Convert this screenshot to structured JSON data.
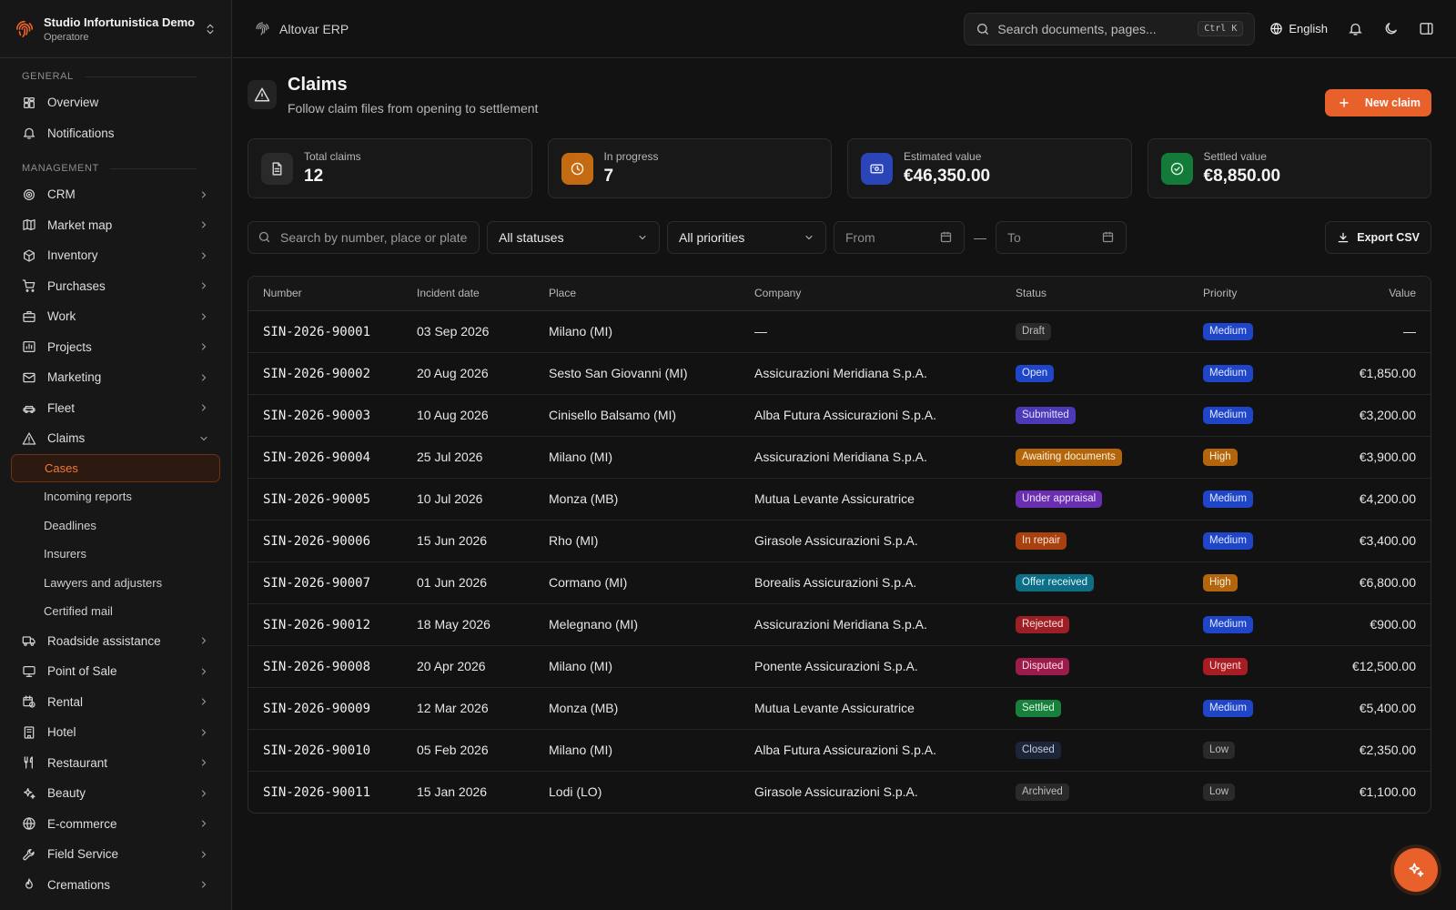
{
  "org": {
    "name": "Studio Infortunistica Demo",
    "role": "Operatore"
  },
  "sidebar": {
    "general_label": "GENERAL",
    "management_label": "MANAGEMENT",
    "general": [
      {
        "label": "Overview",
        "icon": "dashboard-icon"
      },
      {
        "label": "Notifications",
        "icon": "bell-icon"
      }
    ],
    "management_top": [
      {
        "label": "CRM",
        "icon": "target-icon"
      },
      {
        "label": "Market map",
        "icon": "map-icon"
      },
      {
        "label": "Inventory",
        "icon": "package-icon"
      },
      {
        "label": "Purchases",
        "icon": "cart-icon"
      },
      {
        "label": "Work",
        "icon": "briefcase-icon"
      },
      {
        "label": "Projects",
        "icon": "chart-icon"
      },
      {
        "label": "Marketing",
        "icon": "mail-icon"
      },
      {
        "label": "Fleet",
        "icon": "car-icon"
      }
    ],
    "claims": {
      "label": "Claims",
      "icon": "alert-triangle-icon"
    },
    "claims_sub": [
      "Cases",
      "Incoming reports",
      "Deadlines",
      "Insurers",
      "Lawyers and adjusters",
      "Certified mail"
    ],
    "claims_active": "Cases",
    "management_bottom": [
      {
        "label": "Roadside assistance",
        "icon": "truck-icon"
      },
      {
        "label": "Point of Sale",
        "icon": "monitor-icon"
      },
      {
        "label": "Rental",
        "icon": "calendar-clock-icon"
      },
      {
        "label": "Hotel",
        "icon": "building-icon"
      },
      {
        "label": "Restaurant",
        "icon": "utensils-icon"
      },
      {
        "label": "Beauty",
        "icon": "sparkles-icon"
      },
      {
        "label": "E-commerce",
        "icon": "globe-icon"
      },
      {
        "label": "Field Service",
        "icon": "wrench-icon"
      },
      {
        "label": "Cremations",
        "icon": "flame-icon"
      }
    ]
  },
  "topbar": {
    "breadcrumb": "Altovar ERP",
    "search_placeholder": "Search documents, pages...",
    "search_shortcut": "Ctrl K",
    "language": "English"
  },
  "page": {
    "title": "Claims",
    "subtitle": "Follow claim files from opening to settlement",
    "new_button": "New claim"
  },
  "stats": [
    {
      "label": "Total claims",
      "value": "12",
      "icon": "document-icon",
      "bg": "#2a2a2a",
      "fg": "#cfcfcf"
    },
    {
      "label": "In progress",
      "value": "7",
      "icon": "clock-icon",
      "bg": "#c46a12",
      "fg": "#fff1e0"
    },
    {
      "label": "Estimated value",
      "value": "€46,350.00",
      "icon": "banknote-icon",
      "bg": "#2b44b8",
      "fg": "#dbe2ff"
    },
    {
      "label": "Settled value",
      "value": "€8,850.00",
      "icon": "check-circle-icon",
      "bg": "#137a3a",
      "fg": "#d5f5e0"
    }
  ],
  "filters": {
    "search_placeholder": "Search by number, place or plate",
    "status": "All statuses",
    "priority": "All priorities",
    "from": "From",
    "to": "To",
    "export": "Export CSV"
  },
  "table": {
    "columns": [
      "Number",
      "Incident date",
      "Place",
      "Company",
      "Status",
      "Priority",
      "Value"
    ],
    "rows": [
      {
        "number": "SIN-2026-90001",
        "date": "03 Sep 2026",
        "place": "Milano (MI)",
        "company": "—",
        "status": "Draft",
        "status_kind": "draft",
        "priority": "Medium",
        "priority_kind": "medium",
        "value": "—"
      },
      {
        "number": "SIN-2026-90002",
        "date": "20 Aug 2026",
        "place": "Sesto San Giovanni (MI)",
        "company": "Assicurazioni Meridiana S.p.A.",
        "status": "Open",
        "status_kind": "open",
        "priority": "Medium",
        "priority_kind": "medium",
        "value": "€1,850.00"
      },
      {
        "number": "SIN-2026-90003",
        "date": "10 Aug 2026",
        "place": "Cinisello Balsamo (MI)",
        "company": "Alba Futura Assicurazioni S.p.A.",
        "status": "Submitted",
        "status_kind": "submitted",
        "priority": "Medium",
        "priority_kind": "medium",
        "value": "€3,200.00"
      },
      {
        "number": "SIN-2026-90004",
        "date": "25 Jul 2026",
        "place": "Milano (MI)",
        "company": "Assicurazioni Meridiana S.p.A.",
        "status": "Awaiting documents",
        "status_kind": "awaiting",
        "priority": "High",
        "priority_kind": "high",
        "value": "€3,900.00"
      },
      {
        "number": "SIN-2026-90005",
        "date": "10 Jul 2026",
        "place": "Monza (MB)",
        "company": "Mutua Levante Assicuratrice",
        "status": "Under appraisal",
        "status_kind": "appraisal",
        "priority": "Medium",
        "priority_kind": "medium",
        "value": "€4,200.00"
      },
      {
        "number": "SIN-2026-90006",
        "date": "15 Jun 2026",
        "place": "Rho (MI)",
        "company": "Girasole Assicurazioni S.p.A.",
        "status": "In repair",
        "status_kind": "repair",
        "priority": "Medium",
        "priority_kind": "medium",
        "value": "€3,400.00"
      },
      {
        "number": "SIN-2026-90007",
        "date": "01 Jun 2026",
        "place": "Cormano (MI)",
        "company": "Borealis Assicurazioni S.p.A.",
        "status": "Offer received",
        "status_kind": "offer",
        "priority": "High",
        "priority_kind": "high",
        "value": "€6,800.00"
      },
      {
        "number": "SIN-2026-90012",
        "date": "18 May 2026",
        "place": "Melegnano (MI)",
        "company": "Assicurazioni Meridiana S.p.A.",
        "status": "Rejected",
        "status_kind": "rejected",
        "priority": "Medium",
        "priority_kind": "medium",
        "value": "€900.00"
      },
      {
        "number": "SIN-2026-90008",
        "date": "20 Apr 2026",
        "place": "Milano (MI)",
        "company": "Ponente Assicurazioni S.p.A.",
        "status": "Disputed",
        "status_kind": "disputed",
        "priority": "Urgent",
        "priority_kind": "urgent",
        "value": "€12,500.00"
      },
      {
        "number": "SIN-2026-90009",
        "date": "12 Mar 2026",
        "place": "Monza (MB)",
        "company": "Mutua Levante Assicuratrice",
        "status": "Settled",
        "status_kind": "settled",
        "priority": "Medium",
        "priority_kind": "medium",
        "value": "€5,400.00"
      },
      {
        "number": "SIN-2026-90010",
        "date": "05 Feb 2026",
        "place": "Milano (MI)",
        "company": "Alba Futura Assicurazioni S.p.A.",
        "status": "Closed",
        "status_kind": "closed",
        "priority": "Low",
        "priority_kind": "low",
        "value": "€2,350.00"
      },
      {
        "number": "SIN-2026-90011",
        "date": "15 Jan 2026",
        "place": "Lodi (LO)",
        "company": "Girasole Assicurazioni S.p.A.",
        "status": "Archived",
        "status_kind": "archived",
        "priority": "Low",
        "priority_kind": "low",
        "value": "€1,100.00"
      }
    ]
  },
  "badge_colors": {
    "draft": {
      "bg": "#2a2a2a",
      "fg": "#bdbdbd"
    },
    "open": {
      "bg": "#1f45c9",
      "fg": "#e3e9ff"
    },
    "submitted": {
      "bg": "#4a3ab8",
      "fg": "#e6e0ff"
    },
    "awaiting": {
      "bg": "#b3650c",
      "fg": "#fff1dc"
    },
    "appraisal": {
      "bg": "#6a2fb0",
      "fg": "#f1e3ff"
    },
    "repair": {
      "bg": "#a8400f",
      "fg": "#ffe6d8"
    },
    "offer": {
      "bg": "#0d6e86",
      "fg": "#dcf6ff"
    },
    "rejected": {
      "bg": "#9c1f26",
      "fg": "#ffdede"
    },
    "disputed": {
      "bg": "#9b1b4a",
      "fg": "#ffdce9"
    },
    "settled": {
      "bg": "#17803c",
      "fg": "#dcf8e6"
    },
    "closed": {
      "bg": "#1c2638",
      "fg": "#c4cee0"
    },
    "archived": {
      "bg": "#2a2a2a",
      "fg": "#bdbdbd"
    },
    "medium": {
      "bg": "#1f45c9",
      "fg": "#e3e9ff"
    },
    "high": {
      "bg": "#b3650c",
      "fg": "#fff1dc"
    },
    "urgent": {
      "bg": "#a81d24",
      "fg": "#ffdede"
    },
    "low": {
      "bg": "#2a2a2a",
      "fg": "#bdbdbd"
    }
  }
}
